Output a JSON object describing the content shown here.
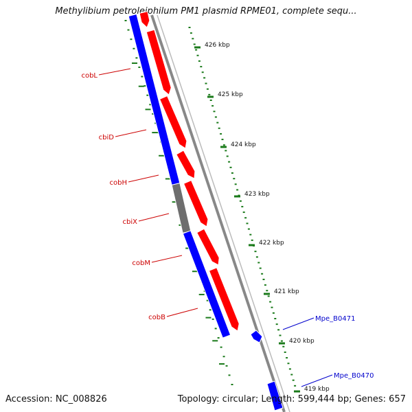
{
  "title": "Methylibium petroleiphilum PM1 plasmid RPME01, complete sequ...",
  "footer": {
    "accession": "Accession: NC_008826",
    "summary": "Topology: circular; Length: 599,444 bp; Genes: 657"
  },
  "ruler": [
    {
      "label": "426 kbp"
    },
    {
      "label": "425 kbp"
    },
    {
      "label": "424 kbp"
    },
    {
      "label": "423 kbp"
    },
    {
      "label": "422 kbp"
    },
    {
      "label": "421 kbp"
    },
    {
      "label": "420 kbp"
    },
    {
      "label": "419 kbp"
    }
  ],
  "gene_labels": [
    {
      "label": "cobL",
      "color": "#cc0000"
    },
    {
      "label": "cbiD",
      "color": "#cc0000"
    },
    {
      "label": "cobH",
      "color": "#cc0000"
    },
    {
      "label": "cbiX",
      "color": "#cc0000"
    },
    {
      "label": "cobM",
      "color": "#cc0000"
    },
    {
      "label": "cobB",
      "color": "#cc0000"
    },
    {
      "label": "Mpe_B0471",
      "color": "#0000cc"
    },
    {
      "label": "Mpe_B0470",
      "color": "#0000cc"
    }
  ],
  "colors": {
    "forward_strand": "#ff0000",
    "reverse_strand": "#0000ff",
    "unassigned": "#6e6e6e",
    "backbone": "#888888",
    "ticks": "#1a7a1a",
    "label_forward": "#cc0000",
    "label_other": "#0000cc"
  }
}
